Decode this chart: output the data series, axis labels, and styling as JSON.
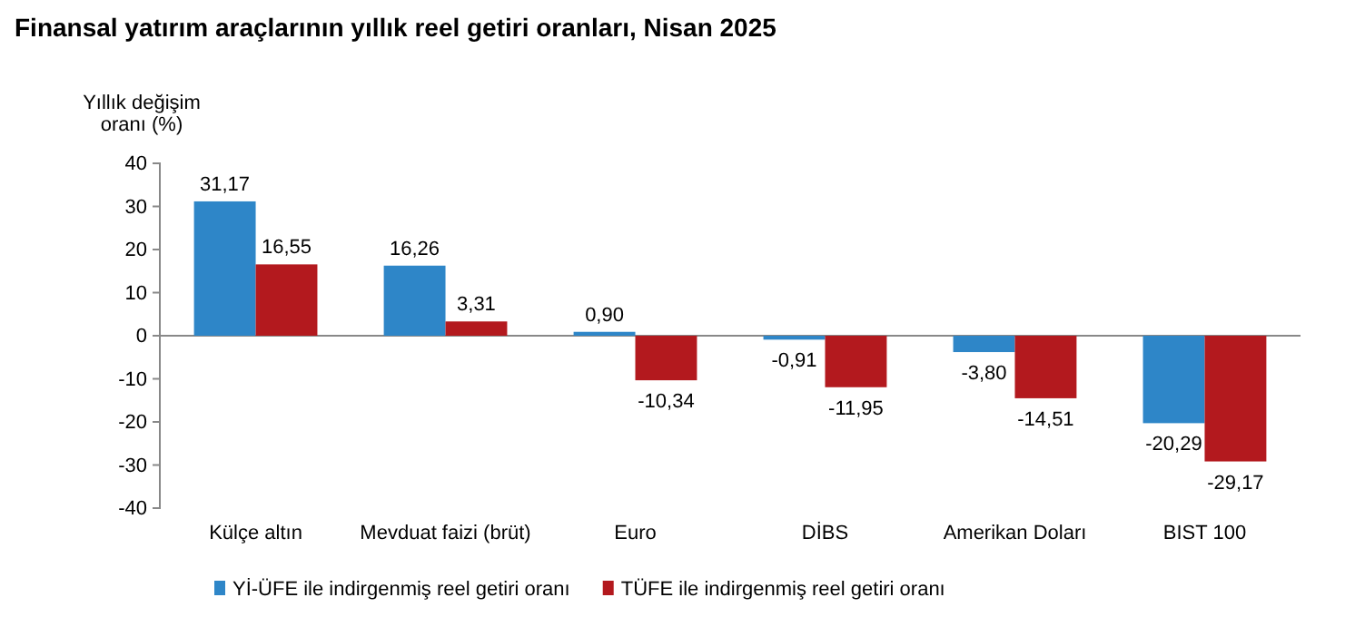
{
  "chart_data": {
    "type": "bar",
    "title": "Finansal yatırım araçlarının yıllık reel getiri oranları, Nisan 2025",
    "ylabel": "Yıllık değişim oranı (%)",
    "categories": [
      "Külçe altın",
      "Mevduat faizi (brüt)",
      "Euro",
      "DİBS",
      "Amerikan Doları",
      "BIST 100"
    ],
    "series": [
      {
        "name": "Yİ-ÜFE ile indirgenmiş reel getiri oranı",
        "color": "#2e86c8",
        "values": [
          31.17,
          16.26,
          0.9,
          -0.91,
          -3.8,
          -20.29
        ],
        "value_labels": [
          "31,17",
          "16,26",
          "0,90",
          "-0,91",
          "-3,80",
          "-20,29"
        ]
      },
      {
        "name": "TÜFE ile indirgenmiş reel getiri oranı",
        "color": "#b3191e",
        "values": [
          16.55,
          3.31,
          -10.34,
          -11.95,
          -14.51,
          -29.17
        ],
        "value_labels": [
          "16,55",
          "3,31",
          "-10,34",
          "-11,95",
          "-14,51",
          "-29,17"
        ]
      }
    ],
    "ylim": [
      -40,
      40
    ],
    "yticks": [
      -40,
      -30,
      -20,
      -10,
      0,
      10,
      20,
      30,
      40
    ],
    "legend": "bottom"
  }
}
